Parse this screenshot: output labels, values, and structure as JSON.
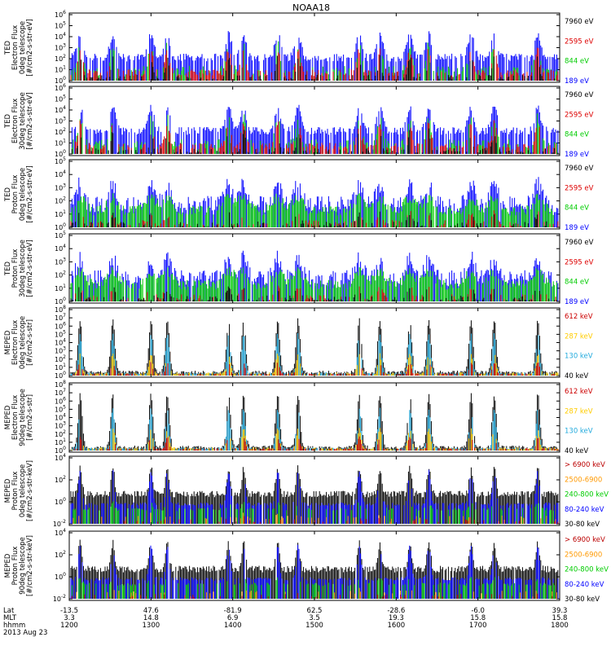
{
  "title": "NOAA18",
  "panels": [
    {
      "ylabel": [
        "TED",
        "Electron Flux",
        "0deg telescope",
        "[#/cm2-s-str-eV]"
      ],
      "ytick_exps": [
        "0",
        "1",
        "2",
        "3",
        "4",
        "5",
        "6"
      ],
      "legend": [
        {
          "text": "7960 eV",
          "color": "#000000"
        },
        {
          "text": "2595 eV",
          "color": "#dd0000"
        },
        {
          "text": "844 eV",
          "color": "#00cc00"
        },
        {
          "text": "189 eV",
          "color": "#0000ff"
        }
      ],
      "kind": "ted_e"
    },
    {
      "ylabel": [
        "TED",
        "Electron Flux",
        "30deg telescope",
        "[#/cm2-s-str-eV]"
      ],
      "ytick_exps": [
        "0",
        "1",
        "2",
        "3",
        "4",
        "5",
        "6"
      ],
      "legend": [
        {
          "text": "7960 eV",
          "color": "#000000"
        },
        {
          "text": "2595 eV",
          "color": "#dd0000"
        },
        {
          "text": "844 eV",
          "color": "#00cc00"
        },
        {
          "text": "189 eV",
          "color": "#0000ff"
        }
      ],
      "kind": "ted_e"
    },
    {
      "ylabel": [
        "TED",
        "Proton Flux",
        "0deg telescope",
        "[#/cm2-s-str-eV]"
      ],
      "ytick_exps": [
        "0",
        "1",
        "2",
        "3",
        "4",
        "5"
      ],
      "legend": [
        {
          "text": "7960 eV",
          "color": "#000000"
        },
        {
          "text": "2595 eV",
          "color": "#dd0000"
        },
        {
          "text": "844 eV",
          "color": "#00cc00"
        },
        {
          "text": "189 eV",
          "color": "#0000ff"
        }
      ],
      "kind": "ted_p"
    },
    {
      "ylabel": [
        "TED",
        "Proton Flux",
        "30deg telescope",
        "[#/cm2-s-str-eV]"
      ],
      "ytick_exps": [
        "0",
        "1",
        "2",
        "3",
        "4",
        "5"
      ],
      "legend": [
        {
          "text": "7960 eV",
          "color": "#000000"
        },
        {
          "text": "2595 eV",
          "color": "#dd0000"
        },
        {
          "text": "844 eV",
          "color": "#00cc00"
        },
        {
          "text": "189 eV",
          "color": "#0000ff"
        }
      ],
      "kind": "ted_p"
    },
    {
      "ylabel": [
        "MEPED",
        "Electron Flux",
        "0deg telescope",
        "[#/cm2-s-str]"
      ],
      "ytick_exps": [
        "0",
        "1",
        "2",
        "3",
        "4",
        "5",
        "6",
        "7",
        "8"
      ],
      "legend": [
        {
          "text": "612 keV",
          "color": "#cc0000"
        },
        {
          "text": "287 keV",
          "color": "#ffcc00"
        },
        {
          "text": "130 keV",
          "color": "#22aadd"
        },
        {
          "text": "40 keV",
          "color": "#000000"
        }
      ],
      "kind": "mep_e"
    },
    {
      "ylabel": [
        "MEPED",
        "Electron Flux",
        "90deg telescope",
        "[#/cm2-s-str]"
      ],
      "ytick_exps": [
        "0",
        "1",
        "2",
        "3",
        "4",
        "5",
        "6",
        "7",
        "8"
      ],
      "legend": [
        {
          "text": "612 keV",
          "color": "#cc0000"
        },
        {
          "text": "287 keV",
          "color": "#ffcc00"
        },
        {
          "text": "130 keV",
          "color": "#22aadd"
        },
        {
          "text": "40 keV",
          "color": "#000000"
        }
      ],
      "kind": "mep_e"
    },
    {
      "ylabel": [
        "MEPED",
        "Proton Flux",
        "0deg telescope",
        "[#/cm2-s-str-keV]"
      ],
      "ytick_exps": [
        "-2",
        "0",
        "2",
        "4"
      ],
      "legend": [
        {
          "text": "> 6900 keV",
          "color": "#bb0000"
        },
        {
          "text": "2500-6900",
          "color": "#ff9900"
        },
        {
          "text": "240-800 keV",
          "color": "#00cc00"
        },
        {
          "text": "80-240 keV",
          "color": "#0000ff"
        },
        {
          "text": "30-80 keV",
          "color": "#000000"
        }
      ],
      "kind": "mep_p"
    },
    {
      "ylabel": [
        "MEPED",
        "Proton Flux",
        "90deg telescope",
        "[#/cm2-s-str-keV]"
      ],
      "ytick_exps": [
        "-2",
        "0",
        "2",
        "4"
      ],
      "legend": [
        {
          "text": "> 6900 keV",
          "color": "#bb0000"
        },
        {
          "text": "2500-6900",
          "color": "#ff9900"
        },
        {
          "text": "240-800 keV",
          "color": "#00cc00"
        },
        {
          "text": "80-240 keV",
          "color": "#0000ff"
        },
        {
          "text": "30-80 keV",
          "color": "#000000"
        }
      ],
      "kind": "mep_p"
    }
  ],
  "xaxis": {
    "row_labels": [
      "Lat",
      "MLT",
      "hhmm",
      "2013 Aug 23"
    ],
    "ticks": [
      {
        "lat": "-13.5",
        "mlt": "3.3",
        "hhmm": "1200"
      },
      {
        "lat": "47.6",
        "mlt": "14.8",
        "hhmm": "1300"
      },
      {
        "lat": "-81.9",
        "mlt": "6.9",
        "hhmm": "1400"
      },
      {
        "lat": "62.5",
        "mlt": "3.5",
        "hhmm": "1500"
      },
      {
        "lat": "-28.6",
        "mlt": "19.3",
        "hhmm": "1600"
      },
      {
        "lat": "-6.0",
        "mlt": "15.8",
        "hhmm": "1700"
      },
      {
        "lat": "39.3",
        "mlt": "15.8",
        "hhmm": "1800"
      }
    ]
  },
  "chart_data": {
    "type": "line",
    "title": "NOAA18",
    "x": [
      "1200",
      "1300",
      "1400",
      "1500",
      "1600",
      "1700",
      "1800"
    ],
    "yscale": "log",
    "passes_hhmm": [
      "1208",
      "1232",
      "1300",
      "1312",
      "1357",
      "1408",
      "1433",
      "1448",
      "1533",
      "1548",
      "1610",
      "1624",
      "1655",
      "1712",
      "1744"
    ]
  }
}
